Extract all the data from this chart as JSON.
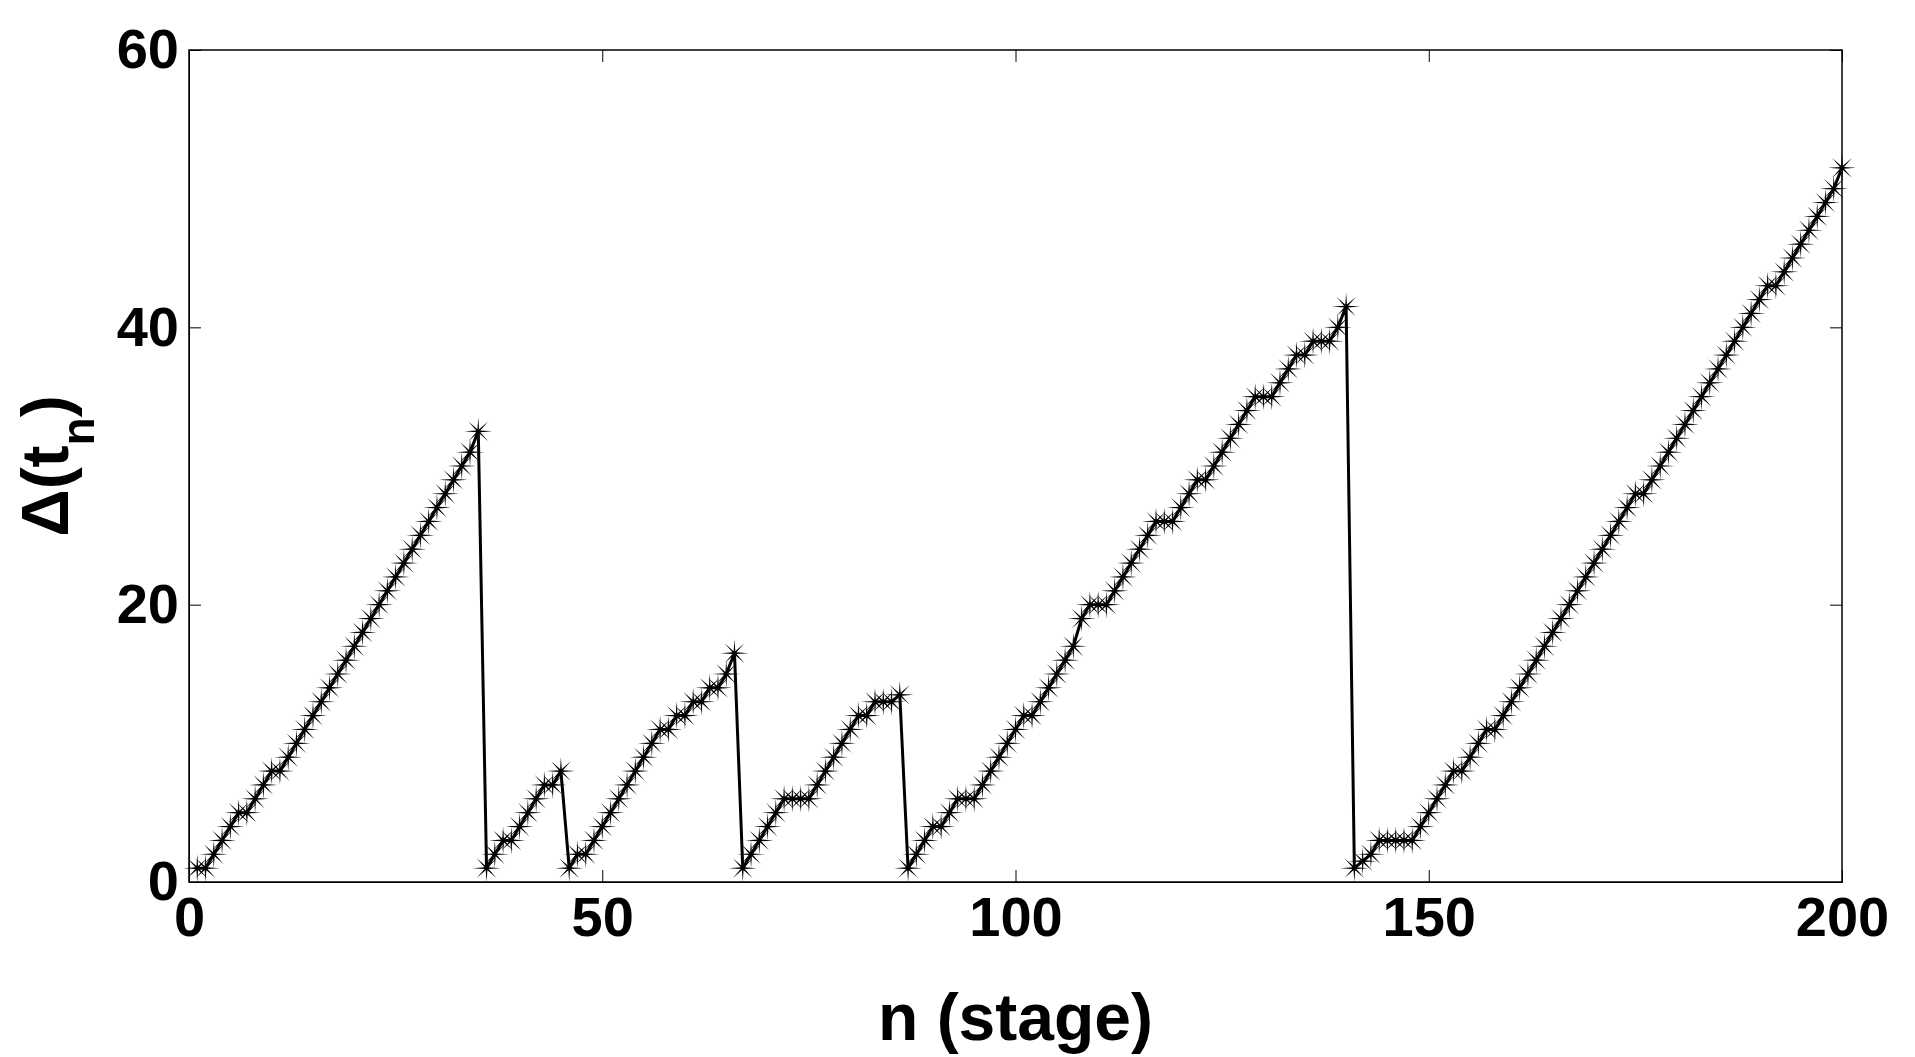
{
  "chart_data": {
    "type": "line",
    "xlabel": "n (stage)",
    "ylabel": "Δ(t$_{n}$)",
    "x": [
      1,
      2,
      3,
      4,
      5,
      6,
      7,
      8,
      9,
      10,
      11,
      12,
      13,
      14,
      15,
      16,
      17,
      18,
      19,
      20,
      21,
      22,
      23,
      24,
      25,
      26,
      27,
      28,
      29,
      30,
      31,
      32,
      33,
      34,
      35,
      36,
      37,
      38,
      39,
      40,
      41,
      42,
      43,
      44,
      45,
      46,
      47,
      48,
      49,
      50,
      51,
      52,
      53,
      54,
      55,
      56,
      57,
      58,
      59,
      60,
      61,
      62,
      63,
      64,
      65,
      66,
      67,
      68,
      69,
      70,
      71,
      72,
      73,
      74,
      75,
      76,
      77,
      78,
      79,
      80,
      81,
      82,
      83,
      84,
      85,
      86,
      87,
      88,
      89,
      90,
      91,
      92,
      93,
      94,
      95,
      96,
      97,
      98,
      99,
      100,
      101,
      102,
      103,
      104,
      105,
      106,
      107,
      108,
      109,
      110,
      111,
      112,
      113,
      114,
      115,
      116,
      117,
      118,
      119,
      120,
      121,
      122,
      123,
      124,
      125,
      126,
      127,
      128,
      129,
      130,
      131,
      132,
      133,
      134,
      135,
      136,
      137,
      138,
      139,
      140,
      141,
      142,
      143,
      144,
      145,
      146,
      147,
      148,
      149,
      150,
      151,
      152,
      153,
      154,
      155,
      156,
      157,
      158,
      159,
      160,
      161,
      162,
      163,
      164,
      165,
      166,
      167,
      168,
      169,
      170,
      171,
      172,
      173,
      174,
      175,
      176,
      177,
      178,
      179,
      180,
      181,
      182,
      183,
      184,
      185,
      186,
      187,
      188,
      189,
      190,
      191,
      192,
      193,
      194,
      195,
      196,
      197,
      198,
      199,
      200
    ],
    "series": [
      {
        "color": "#000000",
        "values": [
          1,
          1,
          2,
          3,
          4,
          5,
          5,
          6,
          7,
          8,
          8,
          9,
          10,
          11,
          12,
          13,
          14,
          15,
          16,
          17,
          18,
          19,
          20,
          21,
          22,
          23,
          24,
          25,
          26,
          27,
          28,
          29,
          30,
          31,
          32.5,
          1,
          2,
          3,
          3,
          4,
          5,
          6,
          7,
          7,
          8,
          1,
          2,
          2,
          3,
          4,
          5,
          6,
          7,
          8,
          9,
          10,
          11,
          11,
          12,
          12,
          13,
          13,
          14,
          14,
          15,
          16.5,
          1,
          2,
          3,
          4,
          5,
          6,
          6,
          6,
          6,
          7,
          8,
          9,
          10,
          11,
          12,
          12,
          13,
          13,
          13,
          13.5,
          1,
          2,
          3,
          4,
          4,
          5,
          6,
          6,
          6,
          7,
          8,
          9,
          10,
          11,
          12,
          12,
          13,
          14,
          15,
          16,
          17,
          19,
          20,
          20,
          20,
          21,
          22,
          23,
          24,
          25,
          26,
          26,
          26,
          27,
          28,
          29,
          29,
          30,
          31,
          32,
          33,
          34,
          35,
          35,
          35,
          36,
          37,
          38,
          38,
          39,
          39,
          39,
          40,
          41.5,
          1,
          1.5,
          2,
          3,
          3,
          3,
          3,
          3,
          4,
          5,
          6,
          7,
          8,
          8,
          9,
          10,
          11,
          11,
          12,
          13,
          14,
          15,
          16,
          17,
          18,
          19,
          20,
          21,
          22,
          23,
          24,
          25,
          26,
          27,
          28,
          28,
          29,
          30,
          31,
          32,
          33,
          34,
          35,
          36,
          37,
          38,
          39,
          40,
          41,
          42,
          43,
          43,
          44,
          45,
          46,
          47,
          48,
          49,
          50,
          51.5
        ]
      }
    ],
    "xlim": [
      0,
      200
    ],
    "xticks": [
      0,
      50,
      100,
      150,
      200
    ],
    "ylim": [
      0,
      60
    ],
    "yticks": [
      0,
      20,
      40,
      60
    ],
    "marker": "star",
    "line_style": "solid",
    "grid": false
  }
}
